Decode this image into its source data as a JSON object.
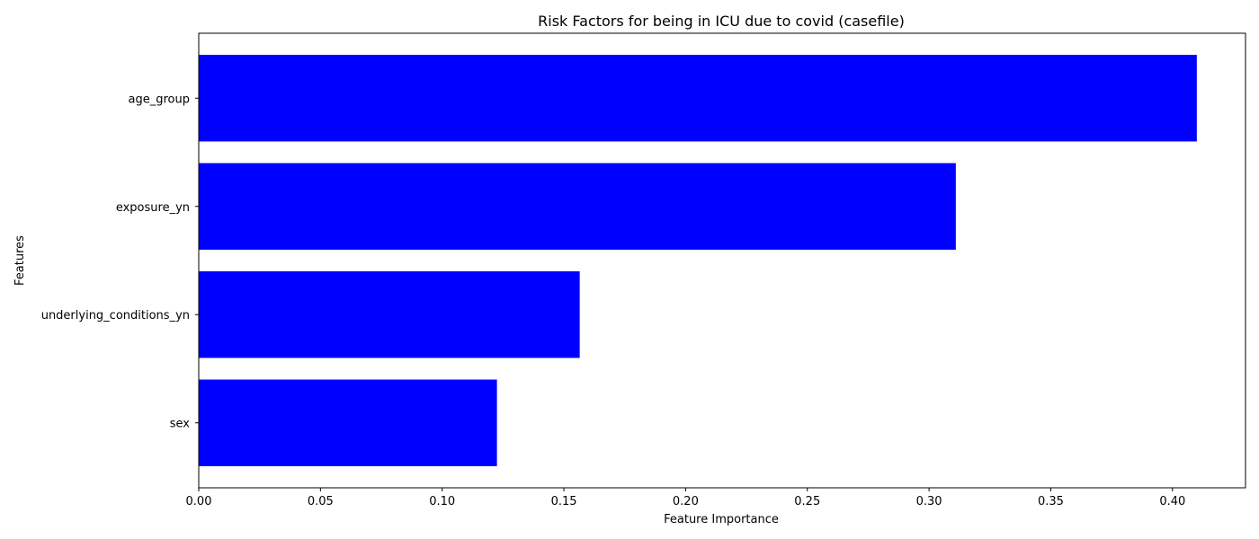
{
  "chart_data": {
    "type": "bar",
    "orientation": "horizontal",
    "title": "Risk Factors for being in ICU due to covid (casefile)",
    "xlabel": "Feature Importance",
    "ylabel": "Features",
    "categories": [
      "age_group",
      "exposure_yn",
      "underlying_conditions_yn",
      "sex"
    ],
    "values": [
      0.41,
      0.311,
      0.1565,
      0.1225
    ],
    "xlim": [
      0,
      0.43
    ],
    "xticks": [
      "0.00",
      "0.05",
      "0.10",
      "0.15",
      "0.20",
      "0.25",
      "0.30",
      "0.35",
      "0.40"
    ],
    "grid": false,
    "bar_color": "#0000ff"
  }
}
